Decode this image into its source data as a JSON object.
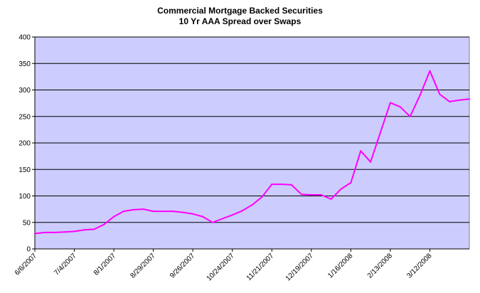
{
  "chart_data": {
    "type": "line",
    "title": "Commercial Mortgage Backed Securities",
    "subtitle": "10 Yr AAA Spread over Swaps",
    "xlabel": "",
    "ylabel": "",
    "ylim": [
      0,
      400
    ],
    "yticks": [
      0,
      50,
      100,
      150,
      200,
      250,
      300,
      350,
      400
    ],
    "xlim": [
      "2007-06-06",
      "2008-04-09"
    ],
    "xtick_labels": [
      "6/6/2007",
      "7/4/2007",
      "8/1/2007",
      "8/29/2007",
      "9/26/2007",
      "10/24/2007",
      "11/21/2007",
      "12/19/2007",
      "1/16/2008",
      "2/13/2008",
      "3/12/2008"
    ],
    "xtick_dates": [
      "2007-06-06",
      "2007-07-04",
      "2007-08-01",
      "2007-08-29",
      "2007-09-26",
      "2007-10-24",
      "2007-11-21",
      "2007-12-19",
      "2008-01-16",
      "2008-02-13",
      "2008-03-12"
    ],
    "grid": true,
    "legend": "none",
    "plot_background": "#ccccff",
    "line_color": "#ff00ff",
    "series": [
      {
        "x": [
          "2007-06-06",
          "2007-06-13",
          "2007-06-20",
          "2007-06-27",
          "2007-07-04",
          "2007-07-11",
          "2007-07-18",
          "2007-07-25",
          "2007-08-01",
          "2007-08-08",
          "2007-08-15",
          "2007-08-22",
          "2007-08-29",
          "2007-09-05",
          "2007-09-12",
          "2007-09-19",
          "2007-09-26",
          "2007-10-03",
          "2007-10-10",
          "2007-10-17",
          "2007-10-24",
          "2007-10-31",
          "2007-11-07",
          "2007-11-14",
          "2007-11-21",
          "2007-11-28",
          "2007-12-05",
          "2007-12-12",
          "2007-12-19",
          "2007-12-26",
          "2008-01-02",
          "2008-01-09",
          "2008-01-16",
          "2008-01-23",
          "2008-01-30",
          "2008-02-06",
          "2008-02-13",
          "2008-02-20",
          "2008-02-27",
          "2008-03-05",
          "2008-03-12",
          "2008-03-19",
          "2008-03-26",
          "2008-04-02",
          "2008-04-09"
        ],
        "values": [
          29,
          31,
          31,
          32,
          33,
          36,
          37,
          46,
          61,
          71,
          74,
          75,
          71,
          71,
          71,
          69,
          66,
          61,
          50,
          57,
          64,
          72,
          83,
          98,
          122,
          122,
          121,
          103,
          102,
          102,
          94,
          113,
          125,
          185,
          164,
          220,
          276,
          268,
          250,
          290,
          336,
          292,
          278,
          281,
          283
        ]
      }
    ]
  }
}
